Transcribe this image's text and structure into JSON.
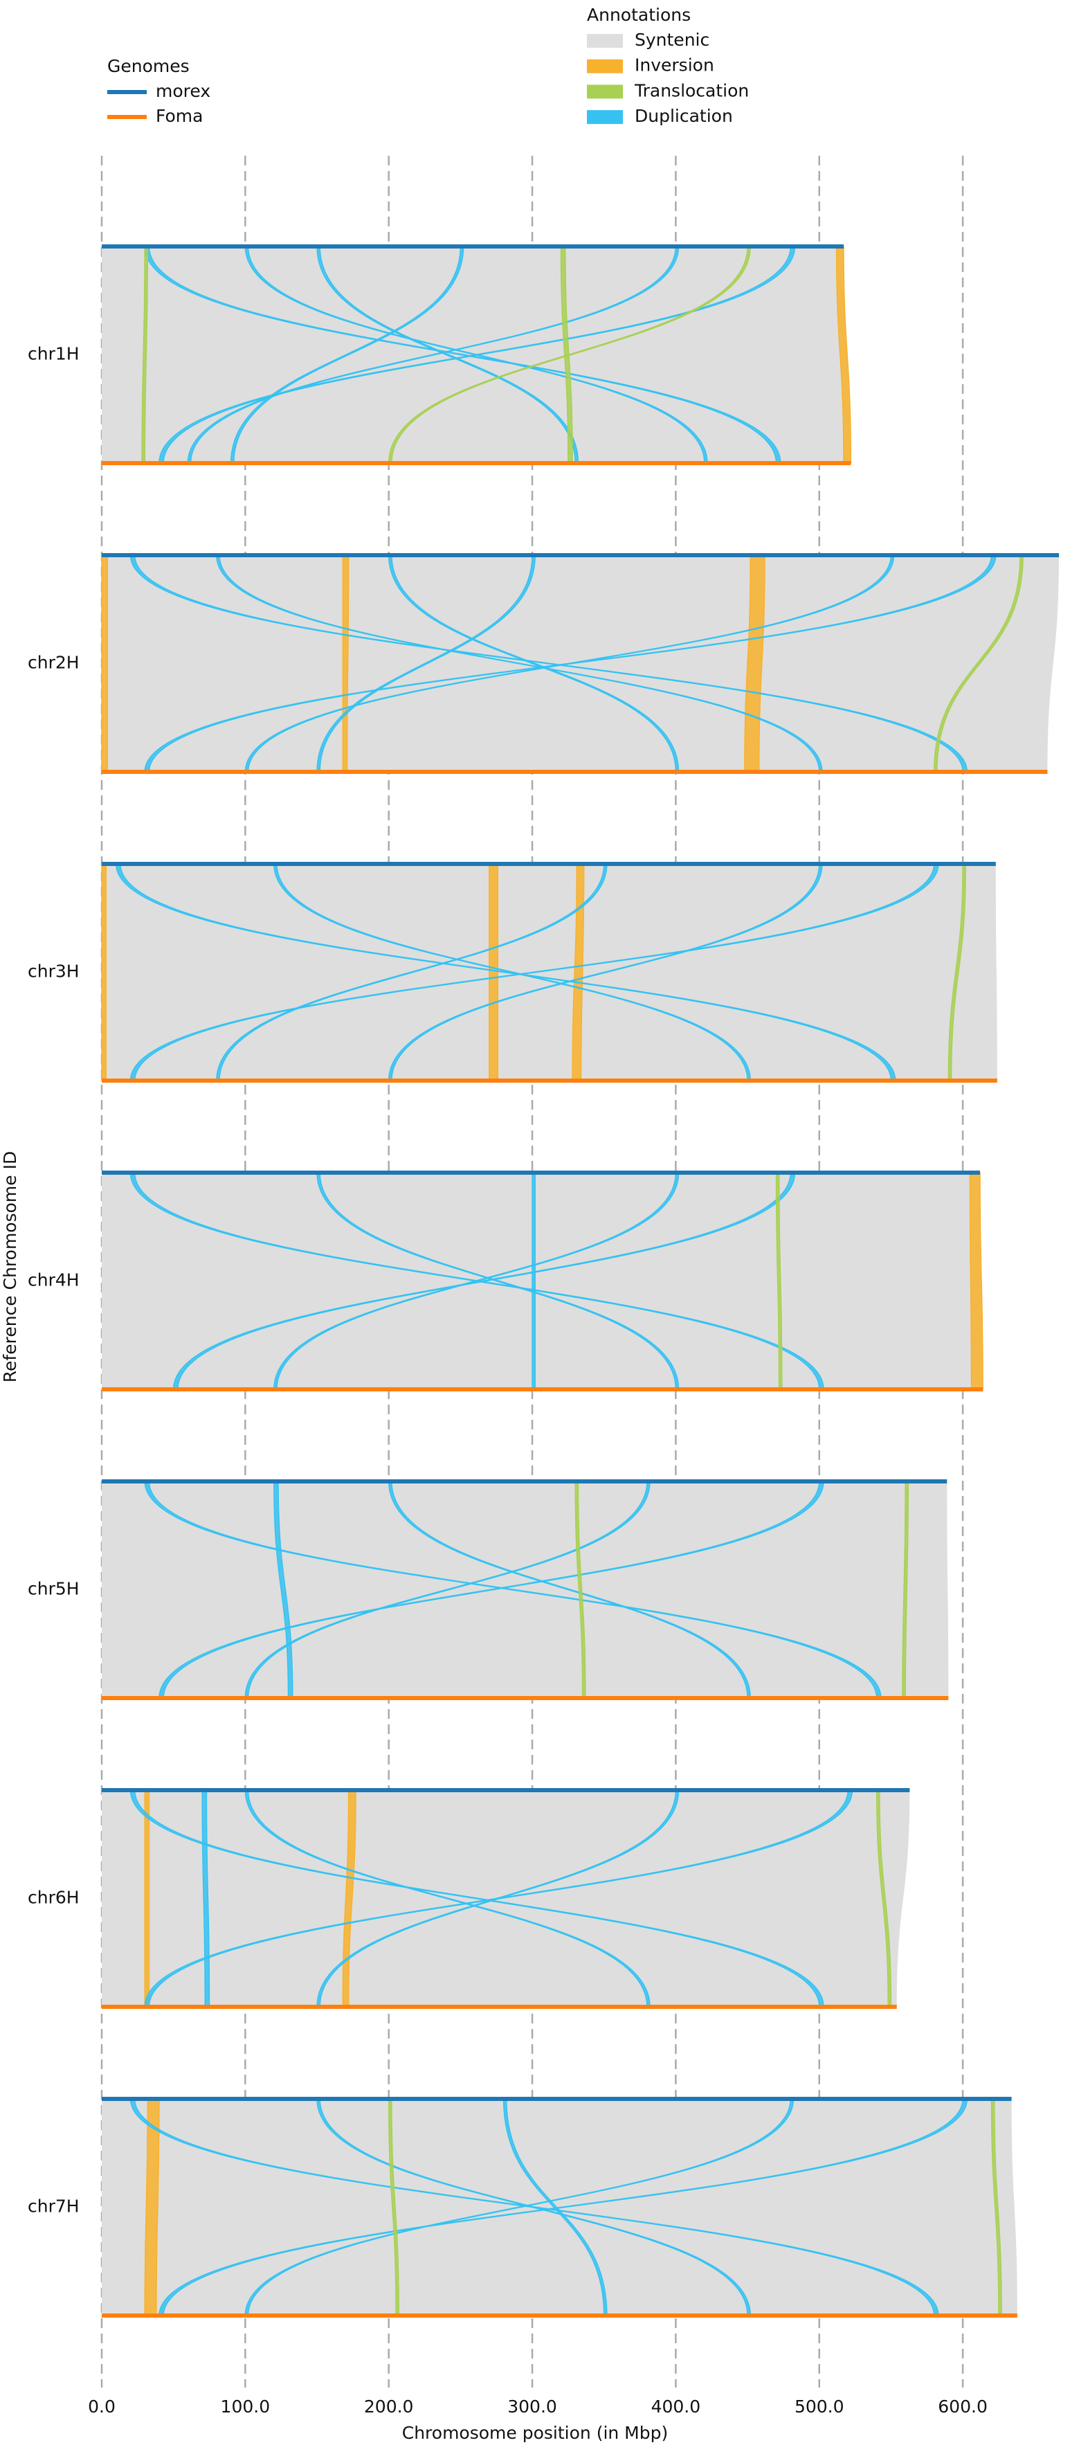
{
  "chart_data": {
    "type": "synteny",
    "legend_title": "Genomes",
    "series": [
      {
        "name": "morex",
        "color": "#1f77b4",
        "values": [
          517,
          667,
          623,
          612,
          589,
          563,
          634
        ]
      },
      {
        "name": "Foma",
        "color": "#ff7f0e",
        "values": [
          522,
          659,
          624,
          614,
          590,
          554,
          638
        ]
      }
    ],
    "categories": [
      "chr1H",
      "chr2H",
      "chr3H",
      "chr4H",
      "chr5H",
      "chr6H",
      "chr7H"
    ],
    "annotations": {
      "title": "Annotations",
      "items": [
        {
          "name": "Syntenic",
          "color": "#dedede"
        },
        {
          "name": "Inversion",
          "color": "#f8b12c"
        },
        {
          "name": "Translocation",
          "color": "#a8d052"
        },
        {
          "name": "Duplication",
          "color": "#35c2f2"
        }
      ]
    },
    "features": [
      [
        0,
        1,
        512,
        517,
        517,
        522
      ],
      [
        0,
        3,
        30,
        33,
        470,
        473
      ],
      [
        0,
        3,
        480,
        483,
        40,
        43
      ],
      [
        0,
        3,
        100,
        102,
        420,
        422
      ],
      [
        0,
        3,
        400,
        402,
        60,
        62
      ],
      [
        0,
        3,
        250,
        252,
        90,
        92
      ],
      [
        0,
        3,
        150,
        152,
        330,
        332
      ],
      [
        0,
        2,
        320,
        323,
        325,
        328
      ],
      [
        0,
        2,
        30,
        32,
        28,
        30
      ],
      [
        0,
        2,
        450,
        452,
        200,
        202
      ],
      [
        1,
        1,
        0,
        4,
        0,
        4
      ],
      [
        1,
        1,
        168,
        172,
        168,
        171
      ],
      [
        1,
        1,
        452,
        462,
        448,
        458
      ],
      [
        1,
        3,
        20,
        23,
        600,
        603
      ],
      [
        1,
        3,
        620,
        623,
        30,
        33
      ],
      [
        1,
        3,
        80,
        82,
        500,
        502
      ],
      [
        1,
        3,
        550,
        552,
        100,
        102
      ],
      [
        1,
        3,
        300,
        302,
        150,
        152
      ],
      [
        1,
        3,
        200,
        202,
        400,
        402
      ],
      [
        1,
        2,
        640,
        642,
        580,
        582
      ],
      [
        2,
        1,
        0,
        3,
        0,
        3
      ],
      [
        2,
        1,
        270,
        276,
        270,
        276
      ],
      [
        2,
        1,
        331,
        336,
        328,
        334
      ],
      [
        2,
        3,
        10,
        13,
        550,
        553
      ],
      [
        2,
        3,
        580,
        583,
        20,
        23
      ],
      [
        2,
        3,
        120,
        122,
        450,
        452
      ],
      [
        2,
        3,
        500,
        502,
        200,
        202
      ],
      [
        2,
        3,
        350,
        352,
        80,
        82
      ],
      [
        2,
        2,
        600,
        602,
        590,
        592
      ],
      [
        3,
        1,
        605,
        612,
        606,
        614
      ],
      [
        3,
        3,
        20,
        23,
        500,
        503
      ],
      [
        3,
        3,
        480,
        483,
        50,
        53
      ],
      [
        3,
        3,
        150,
        152,
        400,
        402
      ],
      [
        3,
        3,
        400,
        402,
        120,
        122
      ],
      [
        3,
        3,
        300,
        302,
        300,
        302
      ],
      [
        3,
        2,
        470,
        472,
        472,
        474
      ],
      [
        4,
        3,
        30,
        33,
        540,
        543
      ],
      [
        4,
        3,
        500,
        503,
        40,
        43
      ],
      [
        4,
        3,
        120,
        123,
        130,
        133
      ],
      [
        4,
        3,
        200,
        202,
        450,
        452
      ],
      [
        4,
        3,
        380,
        382,
        100,
        102
      ],
      [
        4,
        2,
        330,
        332,
        335,
        337
      ],
      [
        4,
        2,
        560,
        562,
        558,
        560
      ],
      [
        5,
        1,
        172,
        177,
        168,
        172
      ],
      [
        5,
        1,
        30,
        33,
        30,
        33
      ],
      [
        5,
        3,
        70,
        73,
        72,
        75
      ],
      [
        5,
        3,
        20,
        23,
        500,
        503
      ],
      [
        5,
        3,
        520,
        523,
        30,
        33
      ],
      [
        5,
        3,
        100,
        102,
        380,
        382
      ],
      [
        5,
        3,
        400,
        402,
        150,
        152
      ],
      [
        5,
        2,
        540,
        542,
        548,
        550
      ],
      [
        6,
        1,
        32,
        40,
        30,
        38
      ],
      [
        6,
        3,
        20,
        23,
        580,
        583
      ],
      [
        6,
        3,
        600,
        603,
        40,
        43
      ],
      [
        6,
        3,
        150,
        152,
        450,
        452
      ],
      [
        6,
        3,
        480,
        482,
        100,
        102
      ],
      [
        6,
        3,
        280,
        282,
        350,
        352
      ],
      [
        6,
        2,
        620,
        622,
        625,
        627
      ],
      [
        6,
        2,
        200,
        202,
        205,
        207
      ]
    ],
    "xlim": [
      0,
      667
    ],
    "xticks": [
      {
        "value": 0,
        "label": "0.0"
      },
      {
        "value": 100,
        "label": "100.0"
      },
      {
        "value": 200,
        "label": "200.0"
      },
      {
        "value": 300,
        "label": "300.0"
      },
      {
        "value": 400,
        "label": "400.0"
      },
      {
        "value": 500,
        "label": "500.0"
      },
      {
        "value": 600,
        "label": "600.0"
      }
    ],
    "xlabel": "Chromosome position (in Mbp)",
    "ylabel": "Reference Chromosome ID",
    "grid": true
  }
}
